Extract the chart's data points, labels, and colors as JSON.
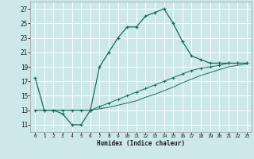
{
  "title": "",
  "xlabel": "Humidex (Indice chaleur)",
  "bg_color": "#cce8e8",
  "grid_color": "#ffffff",
  "line_color": "#1a6b5e",
  "xlim": [
    -0.5,
    23.5
  ],
  "ylim": [
    10.0,
    28.0
  ],
  "xticks": [
    0,
    1,
    2,
    3,
    4,
    5,
    6,
    7,
    8,
    9,
    10,
    11,
    12,
    13,
    14,
    15,
    16,
    17,
    18,
    19,
    20,
    21,
    22,
    23
  ],
  "yticks": [
    11,
    13,
    15,
    17,
    19,
    21,
    23,
    25,
    27
  ],
  "curve1_x": [
    0,
    1,
    2,
    3,
    4,
    5,
    6,
    7,
    8,
    9,
    10,
    11,
    12,
    13,
    14,
    15,
    16,
    17,
    18,
    19,
    20,
    21,
    22,
    23
  ],
  "curve1_y": [
    17.5,
    13.0,
    13.0,
    12.5,
    11.0,
    11.0,
    13.0,
    19.0,
    21.0,
    23.0,
    24.5,
    24.5,
    26.0,
    26.5,
    27.0,
    25.0,
    22.5,
    20.5,
    20.0,
    19.5,
    19.5,
    19.5,
    19.5,
    19.5
  ],
  "curve2_x": [
    0,
    1,
    2,
    3,
    4,
    5,
    6,
    7,
    8,
    9,
    10,
    11,
    12,
    13,
    14,
    15,
    16,
    17,
    18,
    19,
    20,
    21,
    22,
    23
  ],
  "curve2_y": [
    13.0,
    13.0,
    13.0,
    13.0,
    13.0,
    13.0,
    13.0,
    13.5,
    14.0,
    14.5,
    15.0,
    15.5,
    16.0,
    16.5,
    17.0,
    17.5,
    18.0,
    18.5,
    18.8,
    19.0,
    19.2,
    19.5,
    19.5,
    19.5
  ],
  "curve3_x": [
    0,
    1,
    2,
    3,
    4,
    5,
    6,
    7,
    8,
    9,
    10,
    11,
    12,
    13,
    14,
    15,
    16,
    17,
    18,
    19,
    20,
    21,
    22,
    23
  ],
  "curve3_y": [
    13.0,
    13.0,
    13.0,
    13.0,
    13.0,
    13.0,
    13.0,
    13.2,
    13.4,
    13.7,
    14.0,
    14.3,
    14.8,
    15.2,
    15.7,
    16.2,
    16.8,
    17.3,
    17.8,
    18.2,
    18.6,
    19.0,
    19.2,
    19.4
  ]
}
